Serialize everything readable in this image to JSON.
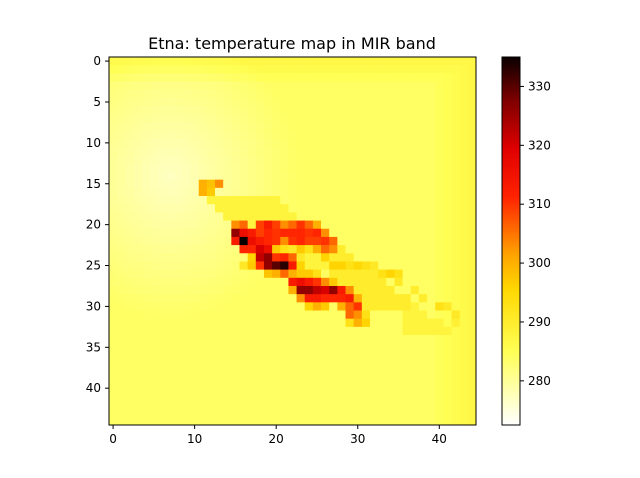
{
  "chart_data": {
    "type": "heatmap",
    "title": "Etna: temperature map in MIR band",
    "xlabel": "",
    "ylabel": "",
    "grid_size": [
      45,
      45
    ],
    "x_ticks": [
      0,
      10,
      20,
      30,
      40
    ],
    "y_ticks": [
      0,
      5,
      10,
      15,
      20,
      25,
      30,
      35,
      40
    ],
    "colormap": "hot_r",
    "colorbar": {
      "range": [
        272.5,
        335
      ],
      "ticks": [
        280,
        290,
        300,
        310,
        320,
        330
      ]
    },
    "baseline_temperature": 284,
    "background_gradient": [
      {
        "region": "upper-left plume",
        "temperature": 277
      },
      {
        "region": "top and right border",
        "temperature": 287
      }
    ],
    "hot_cells": [
      {
        "x": 11,
        "y": 15,
        "value": 300
      },
      {
        "x": 12,
        "y": 15,
        "value": 298
      },
      {
        "x": 13,
        "y": 15,
        "value": 303
      },
      {
        "x": 11,
        "y": 16,
        "value": 300
      },
      {
        "x": 12,
        "y": 16,
        "value": 297
      },
      {
        "x": 15,
        "y": 20,
        "value": 303
      },
      {
        "x": 16,
        "y": 20,
        "value": 306
      },
      {
        "x": 18,
        "y": 20,
        "value": 309
      },
      {
        "x": 19,
        "y": 20,
        "value": 313
      },
      {
        "x": 20,
        "y": 20,
        "value": 309
      },
      {
        "x": 21,
        "y": 20,
        "value": 303
      },
      {
        "x": 22,
        "y": 20,
        "value": 306
      },
      {
        "x": 23,
        "y": 20,
        "value": 310
      },
      {
        "x": 24,
        "y": 20,
        "value": 306
      },
      {
        "x": 25,
        "y": 20,
        "value": 300
      },
      {
        "x": 15,
        "y": 21,
        "value": 326
      },
      {
        "x": 16,
        "y": 21,
        "value": 316
      },
      {
        "x": 17,
        "y": 21,
        "value": 313
      },
      {
        "x": 18,
        "y": 21,
        "value": 309
      },
      {
        "x": 19,
        "y": 21,
        "value": 311
      },
      {
        "x": 20,
        "y": 21,
        "value": 310
      },
      {
        "x": 21,
        "y": 21,
        "value": 311
      },
      {
        "x": 22,
        "y": 21,
        "value": 311
      },
      {
        "x": 23,
        "y": 21,
        "value": 311
      },
      {
        "x": 24,
        "y": 21,
        "value": 310
      },
      {
        "x": 25,
        "y": 21,
        "value": 311
      },
      {
        "x": 26,
        "y": 21,
        "value": 303
      },
      {
        "x": 15,
        "y": 22,
        "value": 313
      },
      {
        "x": 16,
        "y": 22,
        "value": 335
      },
      {
        "x": 17,
        "y": 22,
        "value": 316
      },
      {
        "x": 18,
        "y": 22,
        "value": 313
      },
      {
        "x": 19,
        "y": 22,
        "value": 311
      },
      {
        "x": 20,
        "y": 22,
        "value": 310
      },
      {
        "x": 21,
        "y": 22,
        "value": 303
      },
      {
        "x": 22,
        "y": 22,
        "value": 310
      },
      {
        "x": 23,
        "y": 22,
        "value": 311
      },
      {
        "x": 24,
        "y": 22,
        "value": 309
      },
      {
        "x": 25,
        "y": 22,
        "value": 309
      },
      {
        "x": 26,
        "y": 22,
        "value": 310
      },
      {
        "x": 27,
        "y": 22,
        "value": 306
      },
      {
        "x": 16,
        "y": 23,
        "value": 311
      },
      {
        "x": 17,
        "y": 23,
        "value": 311
      },
      {
        "x": 18,
        "y": 23,
        "value": 320
      },
      {
        "x": 19,
        "y": 23,
        "value": 316
      },
      {
        "x": 20,
        "y": 23,
        "value": 297
      },
      {
        "x": 21,
        "y": 23,
        "value": 293
      },
      {
        "x": 22,
        "y": 23,
        "value": 291
      },
      {
        "x": 23,
        "y": 23,
        "value": 297
      },
      {
        "x": 24,
        "y": 23,
        "value": 293
      },
      {
        "x": 25,
        "y": 23,
        "value": 300
      },
      {
        "x": 26,
        "y": 23,
        "value": 306
      },
      {
        "x": 27,
        "y": 23,
        "value": 303
      },
      {
        "x": 17,
        "y": 24,
        "value": 296
      },
      {
        "x": 18,
        "y": 24,
        "value": 322
      },
      {
        "x": 19,
        "y": 24,
        "value": 326
      },
      {
        "x": 20,
        "y": 24,
        "value": 310
      },
      {
        "x": 21,
        "y": 24,
        "value": 311
      },
      {
        "x": 22,
        "y": 24,
        "value": 306
      },
      {
        "x": 23,
        "y": 24,
        "value": 291
      },
      {
        "x": 26,
        "y": 24,
        "value": 296
      },
      {
        "x": 16,
        "y": 25,
        "value": 291
      },
      {
        "x": 17,
        "y": 25,
        "value": 297
      },
      {
        "x": 18,
        "y": 25,
        "value": 310
      },
      {
        "x": 19,
        "y": 25,
        "value": 326
      },
      {
        "x": 20,
        "y": 25,
        "value": 330
      },
      {
        "x": 21,
        "y": 25,
        "value": 333
      },
      {
        "x": 22,
        "y": 25,
        "value": 313
      },
      {
        "x": 23,
        "y": 25,
        "value": 296
      },
      {
        "x": 27,
        "y": 25,
        "value": 296
      },
      {
        "x": 28,
        "y": 25,
        "value": 296
      },
      {
        "x": 29,
        "y": 25,
        "value": 293
      },
      {
        "x": 30,
        "y": 25,
        "value": 295
      },
      {
        "x": 31,
        "y": 25,
        "value": 293
      },
      {
        "x": 32,
        "y": 25,
        "value": 291
      },
      {
        "x": 19,
        "y": 26,
        "value": 298
      },
      {
        "x": 20,
        "y": 26,
        "value": 300
      },
      {
        "x": 21,
        "y": 26,
        "value": 306
      },
      {
        "x": 22,
        "y": 26,
        "value": 300
      },
      {
        "x": 23,
        "y": 26,
        "value": 297
      },
      {
        "x": 24,
        "y": 26,
        "value": 297
      },
      {
        "x": 25,
        "y": 26,
        "value": 293
      },
      {
        "x": 33,
        "y": 26,
        "value": 293
      },
      {
        "x": 34,
        "y": 26,
        "value": 296
      },
      {
        "x": 35,
        "y": 26,
        "value": 293
      },
      {
        "x": 22,
        "y": 27,
        "value": 313
      },
      {
        "x": 23,
        "y": 27,
        "value": 316
      },
      {
        "x": 24,
        "y": 27,
        "value": 313
      },
      {
        "x": 25,
        "y": 27,
        "value": 310
      },
      {
        "x": 26,
        "y": 27,
        "value": 303
      },
      {
        "x": 27,
        "y": 27,
        "value": 297
      },
      {
        "x": 35,
        "y": 27,
        "value": 291
      },
      {
        "x": 22,
        "y": 28,
        "value": 300
      },
      {
        "x": 23,
        "y": 28,
        "value": 326
      },
      {
        "x": 24,
        "y": 28,
        "value": 326
      },
      {
        "x": 25,
        "y": 28,
        "value": 322
      },
      {
        "x": 26,
        "y": 28,
        "value": 320
      },
      {
        "x": 27,
        "y": 28,
        "value": 326
      },
      {
        "x": 28,
        "y": 28,
        "value": 313
      },
      {
        "x": 29,
        "y": 28,
        "value": 303
      },
      {
        "x": 37,
        "y": 28,
        "value": 290
      },
      {
        "x": 23,
        "y": 29,
        "value": 303
      },
      {
        "x": 24,
        "y": 29,
        "value": 313
      },
      {
        "x": 25,
        "y": 29,
        "value": 313
      },
      {
        "x": 26,
        "y": 29,
        "value": 311
      },
      {
        "x": 27,
        "y": 29,
        "value": 311
      },
      {
        "x": 28,
        "y": 29,
        "value": 311
      },
      {
        "x": 29,
        "y": 29,
        "value": 313
      },
      {
        "x": 30,
        "y": 29,
        "value": 300
      },
      {
        "x": 38,
        "y": 29,
        "value": 290
      },
      {
        "x": 24,
        "y": 30,
        "value": 296
      },
      {
        "x": 25,
        "y": 30,
        "value": 300
      },
      {
        "x": 26,
        "y": 30,
        "value": 297
      },
      {
        "x": 28,
        "y": 30,
        "value": 300
      },
      {
        "x": 29,
        "y": 30,
        "value": 306
      },
      {
        "x": 30,
        "y": 30,
        "value": 310
      },
      {
        "x": 40,
        "y": 30,
        "value": 293
      },
      {
        "x": 41,
        "y": 30,
        "value": 291
      },
      {
        "x": 29,
        "y": 31,
        "value": 306
      },
      {
        "x": 30,
        "y": 31,
        "value": 303
      },
      {
        "x": 31,
        "y": 31,
        "value": 293
      },
      {
        "x": 42,
        "y": 31,
        "value": 291
      },
      {
        "x": 29,
        "y": 32,
        "value": 293
      },
      {
        "x": 30,
        "y": 32,
        "value": 300
      },
      {
        "x": 31,
        "y": 32,
        "value": 296
      },
      {
        "x": 42,
        "y": 32,
        "value": 289
      }
    ],
    "warm_regions": [
      {
        "x_range": [
          27,
          36
        ],
        "y_range": [
          19,
          30
        ],
        "value": 290
      },
      {
        "x_range": [
          30,
          40
        ],
        "y_range": [
          20,
          28
        ],
        "value": 289
      },
      {
        "x_range": [
          12,
          26
        ],
        "y_range": [
          17,
          25
        ],
        "value": 288
      },
      {
        "x_range": [
          36,
          43
        ],
        "y_range": [
          27,
          33
        ],
        "value": 288
      }
    ]
  }
}
